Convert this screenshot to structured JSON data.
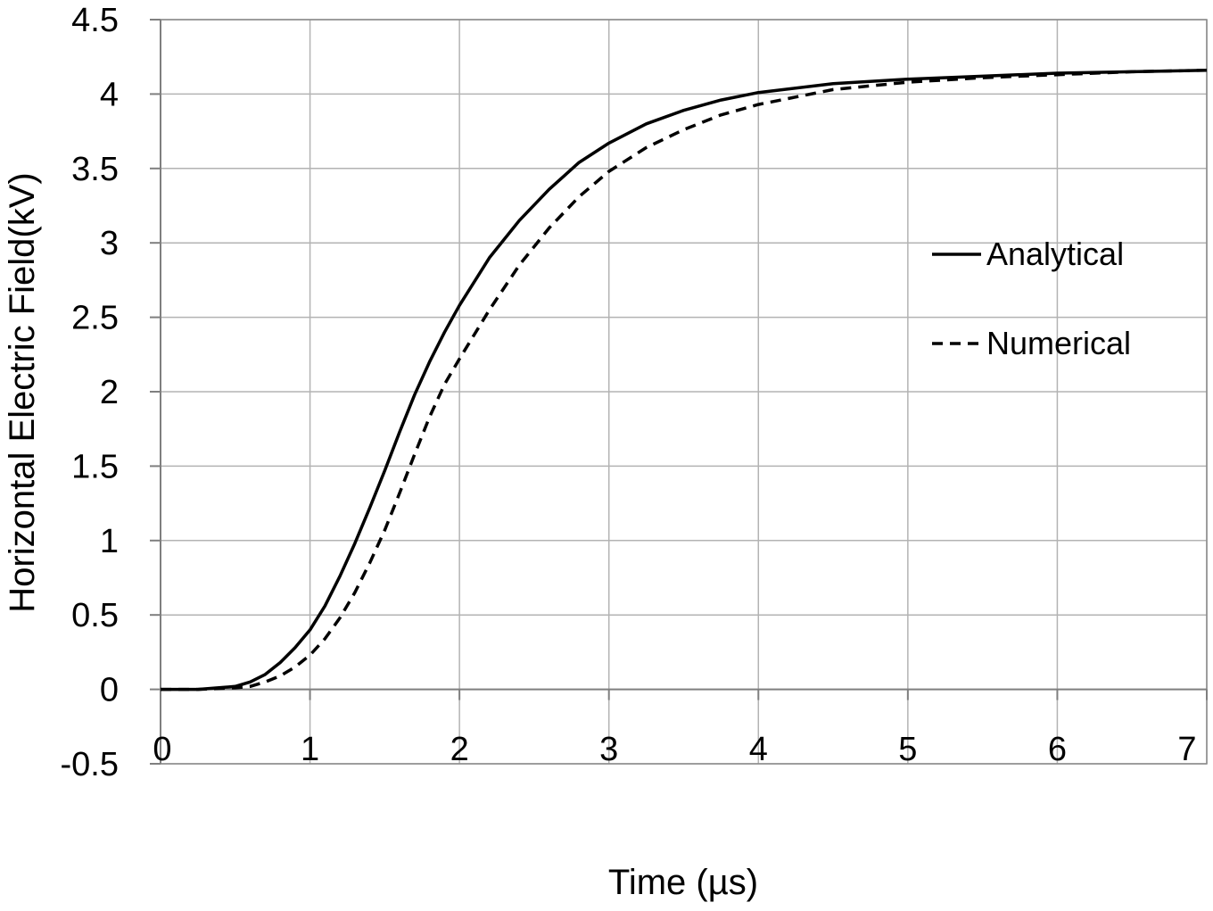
{
  "chart_data": {
    "type": "line",
    "title": "",
    "xlabel": "Time (µs)",
    "ylabel": "Horizontal Electric Field(kV)",
    "xlim": [
      0,
      7
    ],
    "ylim": [
      -0.5,
      4.5
    ],
    "x_ticks": [
      "0",
      "1",
      "2",
      "3",
      "4",
      "5",
      "6",
      "7"
    ],
    "y_ticks": [
      "-0.5",
      "0",
      "0.5",
      "1",
      "1.5",
      "2",
      "2.5",
      "3",
      "3.5",
      "4",
      "4.5"
    ],
    "grid": true,
    "legend_position": "right",
    "series": [
      {
        "name": "Analytical",
        "style": "solid",
        "color": "#000000",
        "x": [
          0,
          0.25,
          0.5,
          0.6,
          0.7,
          0.8,
          0.9,
          1.0,
          1.1,
          1.2,
          1.3,
          1.4,
          1.5,
          1.6,
          1.7,
          1.8,
          1.9,
          2.0,
          2.2,
          2.4,
          2.6,
          2.8,
          3.0,
          3.25,
          3.5,
          3.75,
          4.0,
          4.5,
          5.0,
          5.5,
          6.0,
          6.5,
          7.0
        ],
        "y": [
          0,
          0,
          0.02,
          0.05,
          0.1,
          0.18,
          0.28,
          0.4,
          0.56,
          0.76,
          0.98,
          1.22,
          1.47,
          1.73,
          1.98,
          2.2,
          2.4,
          2.58,
          2.9,
          3.15,
          3.36,
          3.54,
          3.67,
          3.8,
          3.89,
          3.96,
          4.01,
          4.07,
          4.1,
          4.12,
          4.14,
          4.15,
          4.16
        ]
      },
      {
        "name": "Numerical",
        "style": "dashed",
        "color": "#000000",
        "x": [
          0,
          0.25,
          0.5,
          0.6,
          0.7,
          0.8,
          0.9,
          1.0,
          1.1,
          1.2,
          1.3,
          1.4,
          1.5,
          1.6,
          1.7,
          1.8,
          1.9,
          2.0,
          2.2,
          2.4,
          2.6,
          2.8,
          3.0,
          3.25,
          3.5,
          3.75,
          4.0,
          4.5,
          5.0,
          5.5,
          6.0,
          6.5,
          7.0
        ],
        "y": [
          0,
          0,
          0.01,
          0.02,
          0.05,
          0.09,
          0.15,
          0.23,
          0.34,
          0.48,
          0.65,
          0.85,
          1.07,
          1.32,
          1.58,
          1.83,
          2.05,
          2.22,
          2.55,
          2.85,
          3.1,
          3.31,
          3.48,
          3.64,
          3.76,
          3.86,
          3.93,
          4.03,
          4.08,
          4.11,
          4.13,
          4.15,
          4.16
        ]
      }
    ]
  }
}
